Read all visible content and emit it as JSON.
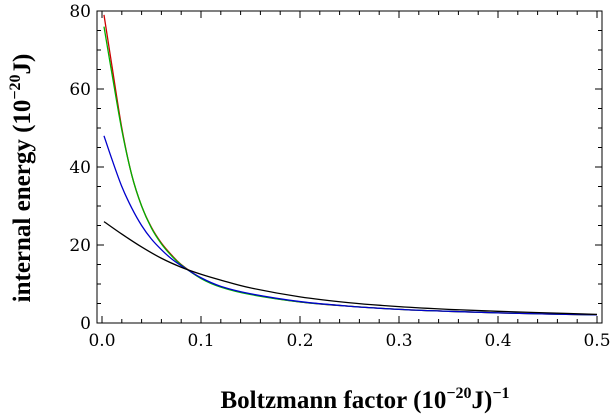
{
  "chart_data": {
    "type": "line",
    "xlabel": "Boltzmann factor (10",
    "xlabel_sup": "−20",
    "xlabel_mid": "J)",
    "xlabel_sup2": "−1",
    "ylabel": "internal energy (10",
    "ylabel_sup": "−20",
    "ylabel_end": "J)",
    "xlim": [
      0,
      0.5
    ],
    "ylim": [
      0,
      80
    ],
    "xticks": [
      0.0,
      0.1,
      0.2,
      0.3,
      0.4,
      0.5
    ],
    "xtick_labels": [
      "0.0",
      "0.1",
      "0.2",
      "0.3",
      "0.4",
      "0.5"
    ],
    "yticks": [
      0,
      20,
      40,
      60,
      80
    ],
    "ytick_labels": [
      "0",
      "20",
      "40",
      "60",
      "80"
    ],
    "grid": false,
    "series": [
      {
        "color": "#cc0000",
        "x": [
          0.002,
          0.01,
          0.02,
          0.03,
          0.04,
          0.05,
          0.06,
          0.07,
          0.08,
          0.1,
          0.12,
          0.15,
          0.2,
          0.25,
          0.3,
          0.35,
          0.4,
          0.45,
          0.5
        ],
        "y": [
          79,
          66,
          50,
          38,
          30,
          24.5,
          20.5,
          17.5,
          15,
          11.5,
          9.3,
          7.4,
          5.4,
          4.3,
          3.5,
          3.0,
          2.6,
          2.3,
          2.1
        ]
      },
      {
        "color": "#00b000",
        "x": [
          0.002,
          0.01,
          0.02,
          0.03,
          0.04,
          0.05,
          0.06,
          0.07,
          0.08,
          0.1,
          0.12,
          0.15,
          0.2,
          0.25,
          0.3,
          0.35,
          0.4,
          0.45,
          0.5
        ],
        "y": [
          76,
          64,
          49.5,
          38,
          30,
          24.3,
          20.3,
          17.3,
          14.9,
          11.4,
          9.2,
          7.3,
          5.4,
          4.3,
          3.5,
          3.0,
          2.6,
          2.3,
          2.1
        ]
      },
      {
        "color": "#0000cc",
        "x": [
          0.002,
          0.01,
          0.02,
          0.03,
          0.04,
          0.05,
          0.06,
          0.07,
          0.08,
          0.1,
          0.12,
          0.15,
          0.2,
          0.25,
          0.3,
          0.35,
          0.4,
          0.45,
          0.5
        ],
        "y": [
          48,
          42,
          35,
          29.5,
          25,
          21.5,
          18.8,
          16.5,
          14.7,
          11.6,
          9.4,
          7.5,
          5.5,
          4.3,
          3.5,
          3.0,
          2.6,
          2.3,
          2.1
        ]
      },
      {
        "color": "#000000",
        "x": [
          0.002,
          0.02,
          0.04,
          0.06,
          0.08,
          0.1,
          0.12,
          0.15,
          0.2,
          0.25,
          0.3,
          0.35,
          0.4,
          0.45,
          0.5
        ],
        "y": [
          26,
          22.8,
          19.5,
          16.6,
          14.3,
          12.5,
          11.0,
          9.0,
          6.7,
          5.2,
          4.2,
          3.5,
          3.0,
          2.6,
          2.2
        ]
      }
    ]
  }
}
